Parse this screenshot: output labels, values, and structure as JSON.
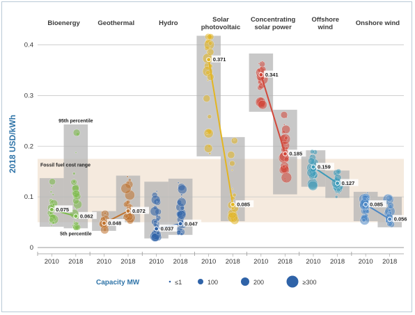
{
  "chart_data": {
    "type": "scatter",
    "ylabel": "2018 USD/kWh",
    "ylim": [
      0,
      0.42
    ],
    "yticks": [
      "0",
      "0.1",
      "0.2",
      "0.3",
      "0.4"
    ],
    "fossil_band": {
      "label": "Fossil fuel cost range",
      "min": 0.05,
      "max": 0.175
    },
    "percentile_labels": {
      "upper": "95th percentile",
      "lower": "5th percentile"
    },
    "categories": [
      {
        "name": "Bioenergy",
        "color": "#7cbb4a",
        "years": [
          {
            "year": "2010",
            "band": [
              0.041,
              0.137
            ],
            "lcoe": 0.075,
            "label": "0.075"
          },
          {
            "year": "2018",
            "band": [
              0.038,
              0.243
            ],
            "lcoe": 0.062,
            "label": "0.062"
          }
        ]
      },
      {
        "name": "Geothermal",
        "color": "#c0732e",
        "years": [
          {
            "year": "2010",
            "band": [
              0.033,
              0.072
            ],
            "lcoe": 0.048,
            "label": "0.048"
          },
          {
            "year": "2018",
            "band": [
              0.05,
              0.142
            ],
            "lcoe": 0.072,
            "label": "0.072"
          }
        ]
      },
      {
        "name": "Hydro",
        "color": "#2f63a8",
        "years": [
          {
            "year": "2010",
            "band": [
              0.018,
              0.13
            ],
            "lcoe": 0.037,
            "label": "0.037"
          },
          {
            "year": "2018",
            "band": [
              0.025,
              0.136
            ],
            "lcoe": 0.047,
            "label": "0.047"
          }
        ]
      },
      {
        "name": "Solar photovoltaic",
        "color": "#e3b521",
        "years": [
          {
            "year": "2010",
            "band": [
              0.18,
              0.418
            ],
            "lcoe": 0.371,
            "label": "0.371"
          },
          {
            "year": "2018",
            "band": [
              0.052,
              0.218
            ],
            "lcoe": 0.085,
            "label": "0.085"
          }
        ]
      },
      {
        "name": "Concentrating solar power",
        "color": "#d2473a",
        "years": [
          {
            "year": "2010",
            "band": [
              0.268,
              0.383
            ],
            "lcoe": 0.341,
            "label": "0.341"
          },
          {
            "year": "2018",
            "band": [
              0.105,
              0.272
            ],
            "lcoe": 0.185,
            "label": "0.185"
          }
        ]
      },
      {
        "name": "Offshore wind",
        "color": "#3c9ab8",
        "years": [
          {
            "year": "2010",
            "band": [
              0.12,
              0.192
            ],
            "lcoe": 0.159,
            "label": "0.159"
          },
          {
            "year": "2018",
            "band": [
              0.098,
              0.152
            ],
            "lcoe": 0.127,
            "label": "0.127"
          }
        ]
      },
      {
        "name": "Onshore wind",
        "color": "#4a86c5",
        "years": [
          {
            "year": "2010",
            "band": [
              0.052,
              0.11
            ],
            "lcoe": 0.085,
            "label": "0.085"
          },
          {
            "year": "2018",
            "band": [
              0.04,
              0.1
            ],
            "lcoe": 0.056,
            "label": "0.056"
          }
        ]
      }
    ],
    "legend": {
      "title": "Capacity MW",
      "entries": [
        "≤1",
        "100",
        "200",
        "≥300"
      ]
    }
  }
}
